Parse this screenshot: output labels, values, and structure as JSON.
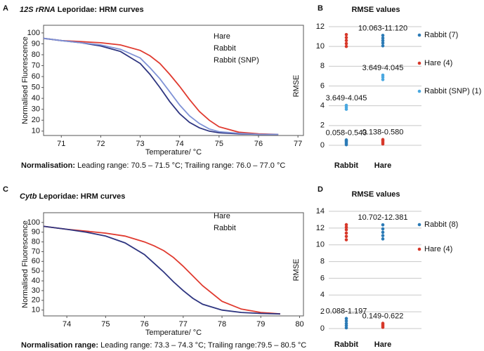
{
  "chart_data": [
    {
      "type": "line",
      "panel": "A",
      "title_gene": "12S rRNA",
      "title": " Leporidae: HRM curves",
      "xlabel": "Temperature/ °C",
      "ylabel": "Normalised Fluorescence",
      "note_bold": "Normalisation:",
      "note": " Leading range: 70.5 – 71.5 °C; Trailing range: 76.0 – 77.0 °C",
      "xlim": [
        70.55,
        77.14
      ],
      "ylim": [
        6,
        107
      ],
      "xticks": [
        71,
        72,
        73,
        74,
        75,
        76,
        77
      ],
      "yticks": [
        10,
        20,
        30,
        40,
        50,
        60,
        70,
        80,
        90,
        100
      ],
      "x": [
        70.55,
        71,
        71.5,
        72,
        72.5,
        73,
        73.25,
        73.5,
        73.75,
        74,
        74.25,
        74.5,
        74.75,
        75,
        75.5,
        76,
        76.5
      ],
      "series": [
        {
          "name": "Hare",
          "color": "#e03a2f",
          "values": [
            95,
            93,
            92,
            91,
            89,
            84,
            79,
            72,
            62,
            51,
            39,
            28,
            20,
            14,
            9,
            7.5,
            7
          ]
        },
        {
          "name": "Rabbit",
          "color": "#2e3580",
          "values": [
            95,
            93,
            91,
            88,
            83,
            72,
            62,
            50,
            37,
            26,
            18,
            13,
            10,
            8.5,
            7.5,
            7,
            7
          ]
        },
        {
          "name": "Rabbit (SNP)",
          "color": "#7f92d6",
          "values": [
            95,
            93,
            91,
            89,
            85,
            77,
            68,
            58,
            46,
            34,
            24,
            17,
            12,
            9.5,
            8,
            7,
            7
          ]
        }
      ]
    },
    {
      "type": "strip",
      "panel": "B",
      "title": "RMSE values",
      "ylabel": "RMSE",
      "ylim": [
        0,
        12
      ],
      "yticks": [
        0,
        2,
        4,
        6,
        8,
        10,
        12
      ],
      "grid": true,
      "categories": [
        "Rabbit",
        "Hare"
      ],
      "category_colors": [
        "#2c7bb6",
        "#d7382a"
      ],
      "series": [
        {
          "name": "Rabbit (7)",
          "color": "#2c7bb6",
          "values": [
            [
              0.058,
              0.2,
              0.35,
              0.45,
              0.543
            ],
            [
              10.063,
              10.35,
              10.6,
              10.85,
              11.12
            ]
          ]
        },
        {
          "name": "Hare (4)",
          "color": "#d7382a",
          "values": [
            [
              10.0,
              10.3,
              10.6,
              10.9,
              11.2
            ],
            [
              0.138,
              0.3,
              0.45,
              0.58
            ]
          ]
        },
        {
          "name": "Rabbit (SNP) (1)",
          "color": "#4aa8e0",
          "values": [
            [
              3.649,
              3.85,
              4.045
            ],
            [
              6.65,
              6.9,
              7.1
            ]
          ]
        }
      ],
      "annotations": [
        {
          "text": "10.063-11.120",
          "series": 0,
          "category": 1
        },
        {
          "text": "3.649-4.045",
          "series": 2,
          "category": 1
        },
        {
          "text": "3.649-4.045",
          "series": 2,
          "category": 0
        },
        {
          "text": "0.058-0.543",
          "series": 0,
          "category": 0
        },
        {
          "text": "0.138-0.580",
          "series": 1,
          "category": 1
        }
      ]
    },
    {
      "type": "line",
      "panel": "C",
      "title_gene": "Cytb",
      "title": " Leporidae: HRM curves",
      "xlabel": "Temperature/ °C",
      "ylabel": "Normalised Fluorescence",
      "note_bold": "Normalisation range:",
      "note": " Leading range: 73.3 – 74.3 °C; Trailing range:79.5 – 80.5 °C",
      "xlim": [
        73.4,
        80.1
      ],
      "ylim": [
        4,
        110
      ],
      "xticks": [
        74,
        75,
        76,
        77,
        78,
        79,
        80
      ],
      "yticks": [
        10,
        20,
        30,
        40,
        50,
        60,
        70,
        80,
        90,
        100
      ],
      "x": [
        73.4,
        74,
        74.5,
        75,
        75.5,
        76,
        76.25,
        76.5,
        76.75,
        77,
        77.25,
        77.5,
        78,
        78.5,
        79,
        79.5
      ],
      "series": [
        {
          "name": "Hare",
          "color": "#e03a2f",
          "values": [
            96,
            93,
            91,
            89,
            86,
            80,
            76,
            71,
            64,
            55,
            45,
            35,
            19,
            11,
            7.5,
            6
          ]
        },
        {
          "name": "Rabbit",
          "color": "#2e3580",
          "values": [
            96,
            93,
            90,
            86,
            79,
            67,
            58,
            49,
            39,
            30,
            22,
            16,
            10,
            7.5,
            6.5,
            6
          ]
        }
      ]
    },
    {
      "type": "strip",
      "panel": "D",
      "title": "RMSE values",
      "ylabel": "RMSE",
      "ylim": [
        0,
        14
      ],
      "yticks": [
        0,
        2,
        4,
        6,
        8,
        10,
        12,
        14
      ],
      "grid": true,
      "categories": [
        "Rabbit",
        "Hare"
      ],
      "category_colors": [
        "#2c7bb6",
        "#d7382a"
      ],
      "series": [
        {
          "name": "Rabbit (8)",
          "color": "#2c7bb6",
          "values": [
            [
              0.088,
              0.35,
              0.6,
              0.9,
              1.197
            ],
            [
              10.702,
              11.1,
              11.5,
              11.9,
              12.381
            ]
          ]
        },
        {
          "name": "Hare (4)",
          "color": "#d7382a",
          "values": [
            [
              10.6,
              11.0,
              11.4,
              11.8,
              12.1,
              12.4
            ],
            [
              0.149,
              0.3,
              0.45,
              0.622
            ]
          ]
        }
      ],
      "annotations": [
        {
          "text": "10.702-12.381",
          "series": 0,
          "category": 1
        },
        {
          "text": "0.088-1.197",
          "series": 0,
          "category": 0
        },
        {
          "text": "0.149-0.622",
          "series": 1,
          "category": 1
        }
      ]
    }
  ]
}
